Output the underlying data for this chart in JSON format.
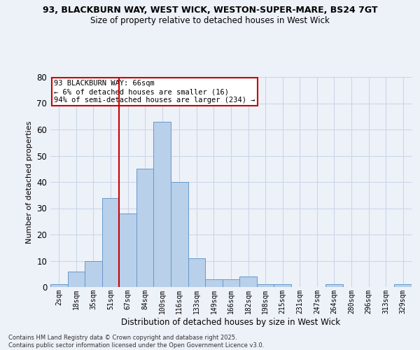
{
  "title_line1": "93, BLACKBURN WAY, WEST WICK, WESTON-SUPER-MARE, BS24 7GT",
  "title_line2": "Size of property relative to detached houses in West Wick",
  "xlabel": "Distribution of detached houses by size in West Wick",
  "ylabel": "Number of detached properties",
  "categories": [
    "2sqm",
    "18sqm",
    "35sqm",
    "51sqm",
    "67sqm",
    "84sqm",
    "100sqm",
    "116sqm",
    "133sqm",
    "149sqm",
    "166sqm",
    "182sqm",
    "198sqm",
    "215sqm",
    "231sqm",
    "247sqm",
    "264sqm",
    "280sqm",
    "296sqm",
    "313sqm",
    "329sqm"
  ],
  "bar_heights": [
    1,
    6,
    10,
    34,
    28,
    45,
    63,
    40,
    11,
    3,
    3,
    4,
    1,
    1,
    0,
    0,
    1,
    0,
    0,
    0,
    1
  ],
  "bar_color": "#b8d0ea",
  "bar_edge_color": "#6699cc",
  "grid_color": "#c8d4e8",
  "bg_color": "#edf1f8",
  "vline_color": "#cc0000",
  "annotation_text": "93 BLACKBURN WAY: 66sqm\n← 6% of detached houses are smaller (16)\n94% of semi-detached houses are larger (234) →",
  "annotation_box_color": "white",
  "annotation_border_color": "#cc0000",
  "ylim": [
    0,
    80
  ],
  "yticks": [
    0,
    10,
    20,
    30,
    40,
    50,
    60,
    70,
    80
  ],
  "footer_line1": "Contains HM Land Registry data © Crown copyright and database right 2025.",
  "footer_line2": "Contains public sector information licensed under the Open Government Licence v3.0."
}
